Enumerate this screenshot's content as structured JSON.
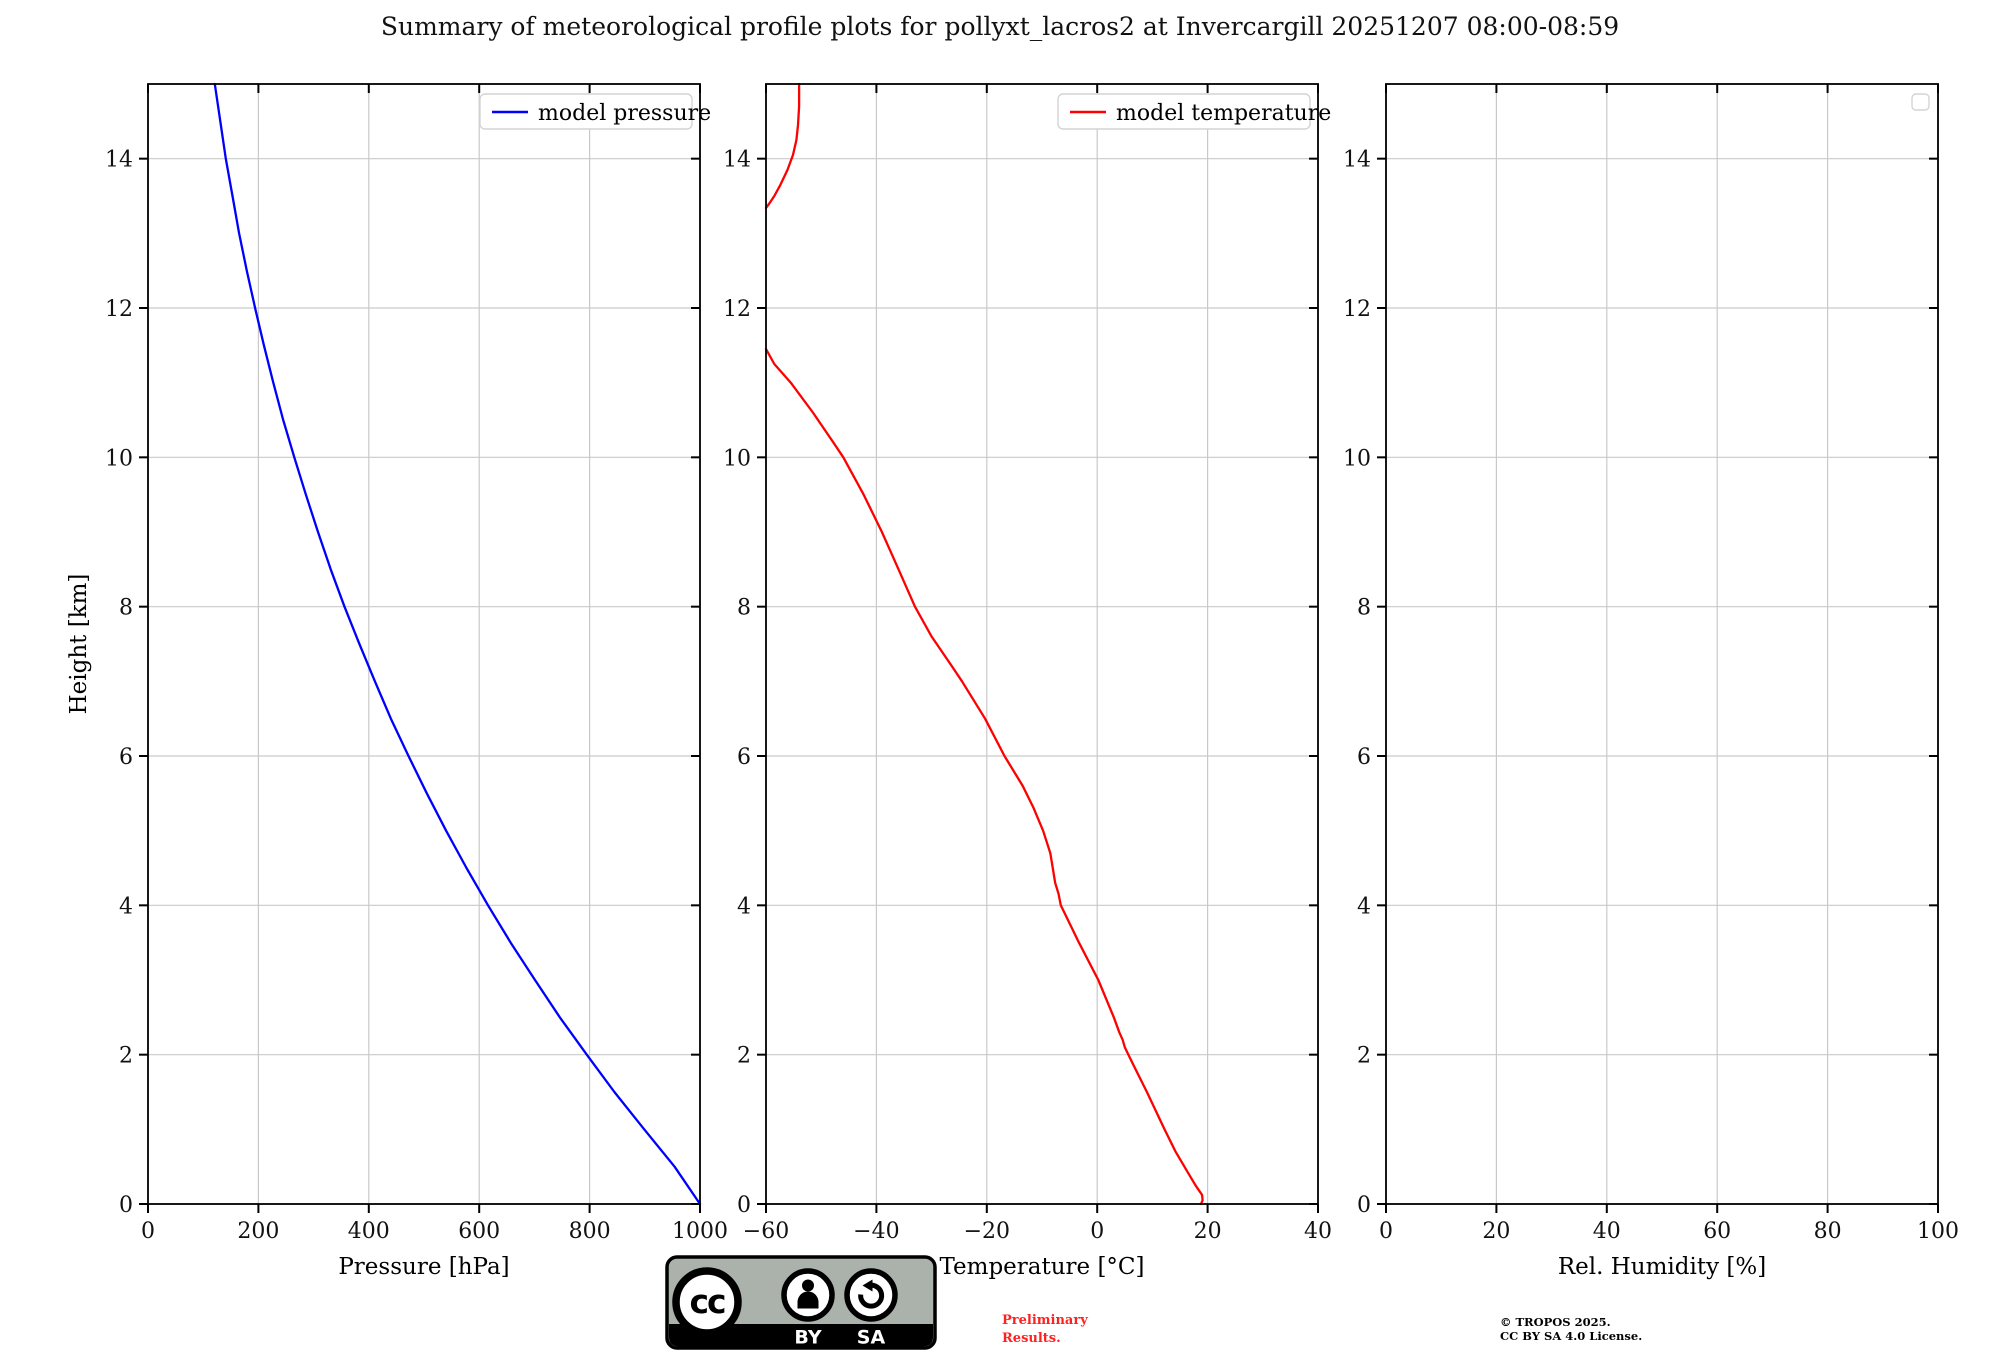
{
  "title": "Summary of meteorological profile plots for pollyxt_lacros2 at Invercargill 20251207 08:00-08:59",
  "colors": {
    "pressure_line": "#0000ff",
    "temperature_line": "#ff0000",
    "grid": "#c9c9c9",
    "axis": "#000000",
    "legend_border": "#d4d4d4",
    "preliminary_text": "#ff2020",
    "badge_background": "#aab2ab"
  },
  "chart_data": [
    {
      "type": "line",
      "xlabel": "Pressure [hPa]",
      "ylabel": "Height [km]",
      "xlim": [
        0,
        1000
      ],
      "ylim": [
        0,
        15
      ],
      "xticks": [
        0,
        200,
        400,
        600,
        800,
        1000
      ],
      "yticks": [
        0,
        2,
        4,
        6,
        8,
        10,
        12,
        14
      ],
      "grid": true,
      "legend": {
        "position": "upper right",
        "entries": [
          {
            "label": "model pressure",
            "color": "#0000ff"
          }
        ]
      },
      "series": [
        {
          "name": "model pressure",
          "color": "#0000ff",
          "segments": [
            {
              "heights_km": [
                0,
                0.5,
                1,
                1.5,
                2,
                2.5,
                3,
                3.5,
                4,
                4.5,
                5,
                5.5,
                6,
                6.5,
                7,
                7.5,
                8,
                8.5,
                9,
                9.5,
                10,
                10.5,
                11,
                11.5,
                12,
                12.5,
                13,
                13.5,
                14,
                14.5,
                15
              ],
              "values": [
                1000,
                954,
                899,
                845,
                795,
                746,
                701,
                657,
                616,
                577,
                540,
                505,
                472,
                440,
                411,
                383,
                356,
                331,
                308,
                286,
                265,
                245,
                227,
                210,
                194,
                179,
                165,
                153,
                141,
                131,
                121
              ]
            }
          ]
        }
      ]
    },
    {
      "type": "line",
      "xlabel": "Temperature [°C]",
      "ylabel": "",
      "xlim": [
        -60,
        40
      ],
      "ylim": [
        0,
        15
      ],
      "xticks": [
        -60,
        -40,
        -20,
        0,
        20,
        40
      ],
      "yticks": [
        0,
        2,
        4,
        6,
        8,
        10,
        12,
        14
      ],
      "grid": true,
      "legend": {
        "position": "upper right",
        "entries": [
          {
            "label": "model temperature",
            "color": "#ff0000"
          }
        ]
      },
      "series": [
        {
          "name": "model temperature",
          "color": "#ff0000",
          "segments": [
            {
              "heights_km": [
                15,
                14.7,
                14.45,
                14.25,
                14.05,
                13.85,
                13.65,
                13.5,
                13.4,
                13.34
              ],
              "values": [
                -54.0,
                -54.0,
                -54.2,
                -54.5,
                -55.1,
                -56.1,
                -57.4,
                -58.5,
                -59.4,
                -60.0
              ]
            },
            {
              "heights_km": [
                11.45,
                11.25,
                11.0,
                10.6,
                10.2,
                10.0,
                9.5,
                9.0,
                8.5,
                8.0,
                7.6,
                7.2,
                7.0,
                6.5,
                6.0,
                5.6,
                5.3,
                5.0,
                4.7,
                4.3,
                4.15,
                4.0,
                3.5,
                3.0,
                2.5,
                2.3,
                2.2,
                2.1,
                1.9,
                1.5,
                1.0,
                0.7,
                0.4,
                0.25,
                0.12,
                0.05,
                0.0
              ],
              "values": [
                -60.0,
                -58.5,
                -55.5,
                -51.5,
                -47.8,
                -46.0,
                -42.3,
                -39.0,
                -36.0,
                -33.0,
                -30.0,
                -26.3,
                -24.5,
                -20.3,
                -16.8,
                -13.5,
                -11.5,
                -9.8,
                -8.5,
                -7.6,
                -7.0,
                -6.6,
                -3.3,
                0.2,
                3.0,
                4.0,
                4.6,
                5.0,
                6.3,
                9.0,
                12.2,
                14.2,
                16.6,
                17.8,
                19.0,
                19.1,
                18.8
              ]
            }
          ]
        }
      ]
    },
    {
      "type": "line",
      "xlabel": "Rel. Humidity [%]",
      "ylabel": "",
      "xlim": [
        0,
        100
      ],
      "ylim": [
        0,
        15
      ],
      "xticks": [
        0,
        20,
        40,
        60,
        80,
        100
      ],
      "yticks": [
        0,
        2,
        4,
        6,
        8,
        10,
        12,
        14
      ],
      "grid": true,
      "legend": {
        "position": "upper right",
        "entries": []
      },
      "series": []
    }
  ],
  "footer": {
    "license_badge": {
      "cc": "cc",
      "by": "BY",
      "sa": "SA"
    },
    "preliminary_note": {
      "lines": [
        "Preliminary",
        "Results."
      ]
    },
    "copyright_note": {
      "lines": [
        "© TROPOS 2025.",
        "CC BY SA 4.0 License."
      ]
    }
  }
}
